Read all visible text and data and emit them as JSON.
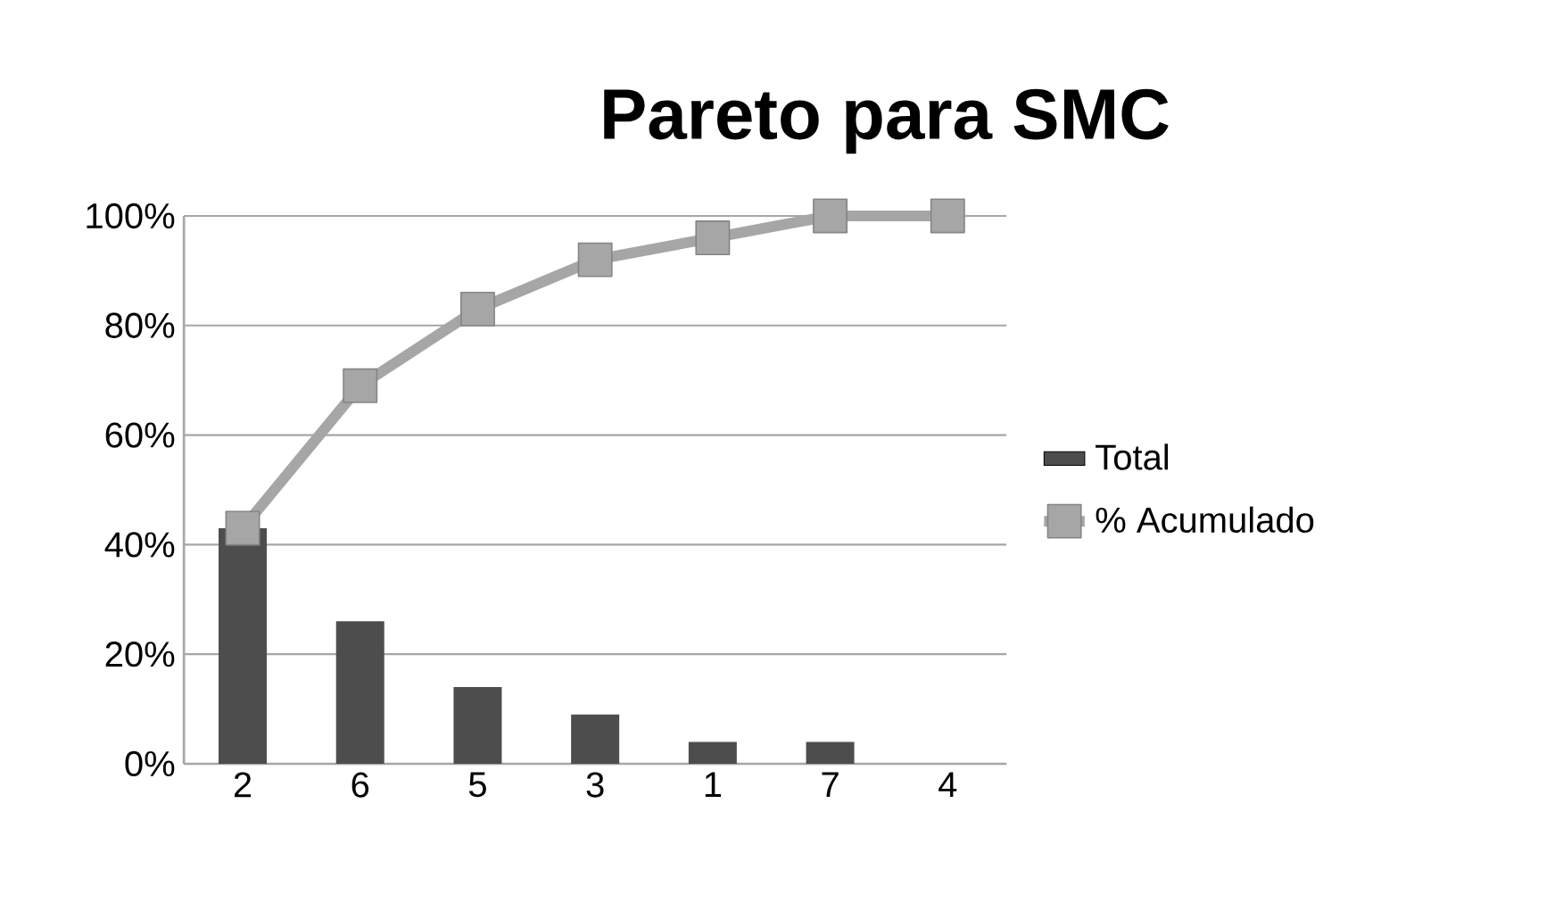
{
  "chart_data": {
    "type": "bar",
    "title": "Pareto para SMC",
    "categories": [
      "2",
      "6",
      "5",
      "3",
      "1",
      "7",
      "4"
    ],
    "series": [
      {
        "name": "Total",
        "color": "#4d4d4d",
        "values": [
          43,
          26,
          14,
          9,
          4,
          4,
          0
        ]
      },
      {
        "name": "% Acumulado",
        "type": "line",
        "color": "#a6a6a6",
        "marker": "square",
        "values": [
          43,
          69,
          83,
          92,
          96,
          100,
          100
        ]
      }
    ],
    "ylim": [
      0,
      100
    ],
    "yticks": [
      {
        "value": 0,
        "label": "0%"
      },
      {
        "value": 20,
        "label": "20%"
      },
      {
        "value": 40,
        "label": "40%"
      },
      {
        "value": 60,
        "label": "60%"
      },
      {
        "value": 80,
        "label": "80%"
      },
      {
        "value": 100,
        "label": "100%"
      }
    ],
    "grid": "y",
    "legend": "right"
  }
}
